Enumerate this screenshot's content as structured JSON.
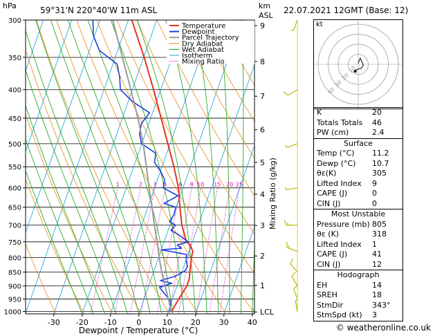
{
  "header": {
    "location": "59°31'N  220°40'W  11m  ASL",
    "datetime": "22.07.2021  12GMT  (Base: 12)"
  },
  "left_axis_label": "hPa",
  "right_axis_label_km": "km",
  "right_axis_label_asl": "ASL",
  "mixing_ratio_axis_label": "Mixing Ratio (g/kg)",
  "legend": [
    "Temperature",
    "Dewpoint",
    "Parcel Trajectory",
    "Dry Adiabat",
    "Wet Adiabat",
    "Isotherm",
    "Mixing Ratio"
  ],
  "colors": {
    "temperature": "#e8301c",
    "dewpoint": "#1a3fe0",
    "parcel": "#9a9a9a",
    "dry_adiabat": "#e88a10",
    "wet_adiabat": "#10a010",
    "isotherm": "#10a0d0",
    "mixing_ratio": "#d000b0"
  },
  "chart_data": {
    "type": "line",
    "title": "",
    "xlabel": "Dewpoint / Temperature (°C)",
    "ylabel": "hPa",
    "x_ticks": [
      -30,
      -20,
      -10,
      0,
      10,
      20,
      30,
      40
    ],
    "pressure_levels": [
      300,
      350,
      400,
      450,
      500,
      550,
      600,
      650,
      700,
      750,
      800,
      850,
      900,
      950,
      1000
    ],
    "km_ticks": [
      {
        "label": "9",
        "p": 307
      },
      {
        "label": "8",
        "p": 356
      },
      {
        "label": "7",
        "p": 411
      },
      {
        "label": "6",
        "p": 472
      },
      {
        "label": "5",
        "p": 540
      },
      {
        "label": "4",
        "p": 616
      },
      {
        "label": "3",
        "p": 701
      },
      {
        "label": "2",
        "p": 795
      },
      {
        "label": "1",
        "p": 898
      },
      {
        "label": "LCL",
        "p": 1002
      }
    ],
    "mixing_ratio_labels": [
      "1",
      "2",
      "3",
      "4",
      "6",
      "8",
      "10",
      "15",
      "20",
      "25"
    ],
    "mixing_ratio_values": [
      1,
      2,
      3,
      4,
      6,
      8,
      10,
      15,
      20,
      25
    ],
    "series": [
      {
        "name": "Temperature",
        "points": [
          [
            1003,
            11.2
          ],
          [
            950,
            12.2
          ],
          [
            900,
            13.5
          ],
          [
            870,
            13.4
          ],
          [
            850,
            12.8
          ],
          [
            800,
            11.6
          ],
          [
            780,
            11.3
          ],
          [
            760,
            9.6
          ],
          [
            750,
            7.9
          ],
          [
            700,
            4.2
          ],
          [
            650,
            1.3
          ],
          [
            600,
            -1.6
          ],
          [
            550,
            -5.8
          ],
          [
            500,
            -10.8
          ],
          [
            450,
            -16.3
          ],
          [
            400,
            -22.5
          ],
          [
            350,
            -29.8
          ],
          [
            300,
            -38.8
          ]
        ]
      },
      {
        "name": "Dewpoint",
        "points": [
          [
            1003,
            10.7
          ],
          [
            960,
            9.8
          ],
          [
            935,
            7.2
          ],
          [
            905,
            4.0
          ],
          [
            890,
            7.9
          ],
          [
            880,
            3.5
          ],
          [
            865,
            8.1
          ],
          [
            845,
            11.0
          ],
          [
            830,
            11.3
          ],
          [
            810,
            10.1
          ],
          [
            790,
            9.4
          ],
          [
            775,
            0.0
          ],
          [
            770,
            7.0
          ],
          [
            760,
            5.0
          ],
          [
            750,
            8.5
          ],
          [
            730,
            4.6
          ],
          [
            715,
            1.0
          ],
          [
            700,
            2.0
          ],
          [
            690,
            -0.6
          ],
          [
            670,
            0.2
          ],
          [
            650,
            -0.2
          ],
          [
            640,
            -4.8
          ],
          [
            620,
            -0.8
          ],
          [
            600,
            -7.0
          ],
          [
            580,
            -7.5
          ],
          [
            560,
            -10.0
          ],
          [
            540,
            -13.2
          ],
          [
            520,
            -13.9
          ],
          [
            500,
            -20.1
          ],
          [
            480,
            -22.0
          ],
          [
            460,
            -22.6
          ],
          [
            440,
            -21.1
          ],
          [
            420,
            -28.5
          ],
          [
            400,
            -34.2
          ],
          [
            380,
            -36.0
          ],
          [
            360,
            -38.5
          ],
          [
            340,
            -46.5
          ],
          [
            320,
            -50.4
          ],
          [
            300,
            -52.5
          ]
        ]
      },
      {
        "name": "Parcel Trajectory",
        "points": [
          [
            1003,
            11.2
          ],
          [
            950,
            8.6
          ],
          [
            900,
            5.8
          ],
          [
            850,
            2.9
          ],
          [
            800,
            0.2
          ],
          [
            750,
            -2.4
          ],
          [
            700,
            -5.5
          ],
          [
            650,
            -8.5
          ],
          [
            600,
            -12.0
          ],
          [
            550,
            -15.5
          ],
          [
            500,
            -19.5
          ],
          [
            450,
            -24.5
          ],
          [
            400,
            -30.5
          ],
          [
            350,
            -37.5
          ],
          [
            300,
            -45.5
          ]
        ]
      }
    ]
  },
  "hodograph": {
    "label": "kt",
    "ring_labels": [
      "10",
      "20",
      "30",
      "40"
    ],
    "path_kt": [
      [
        0,
        1
      ],
      [
        1,
        4
      ],
      [
        2,
        6
      ],
      [
        4,
        2
      ],
      [
        5,
        -1
      ],
      [
        3,
        -4
      ],
      [
        -1,
        -5
      ],
      [
        -3,
        -7
      ]
    ]
  },
  "indices": {
    "top": [
      {
        "label": "K",
        "value": "20"
      },
      {
        "label": "Totals Totals",
        "value": "46"
      },
      {
        "label": "PW (cm)",
        "value": "2.4"
      }
    ],
    "surface": {
      "title": "Surface",
      "rows": [
        {
          "label": "Temp (°C)",
          "value": "11.2"
        },
        {
          "label": "Dewp (°C)",
          "value": "10.7"
        },
        {
          "label": "θε(K)",
          "value": "305"
        },
        {
          "label": "Lifted Index",
          "value": "9"
        },
        {
          "label": "CAPE (J)",
          "value": "0"
        },
        {
          "label": "CIN (J)",
          "value": "0"
        }
      ]
    },
    "most_unstable": {
      "title": "Most Unstable",
      "rows": [
        {
          "label": "Pressure (mb)",
          "value": "805"
        },
        {
          "label": "θε (K)",
          "value": "318"
        },
        {
          "label": "Lifted Index",
          "value": "1"
        },
        {
          "label": "CAPE (J)",
          "value": "41"
        },
        {
          "label": "CIN (J)",
          "value": "12"
        }
      ]
    },
    "hodograph": {
      "title": "Hodograph",
      "rows": [
        {
          "label": "EH",
          "value": "14"
        },
        {
          "label": "SREH",
          "value": "18"
        },
        {
          "label": "StmDir",
          "value": "343°"
        },
        {
          "label": "StmSpd (kt)",
          "value": "3"
        }
      ]
    }
  },
  "wind_barbs": [
    {
      "p": 300,
      "dir": 200,
      "spd": 5
    },
    {
      "p": 400,
      "dir": 240,
      "spd": 10
    },
    {
      "p": 500,
      "dir": 250,
      "spd": 5
    },
    {
      "p": 600,
      "dir": 260,
      "spd": 5
    },
    {
      "p": 700,
      "dir": 270,
      "spd": 15
    },
    {
      "p": 780,
      "dir": 290,
      "spd": 15
    },
    {
      "p": 850,
      "dir": 320,
      "spd": 10
    },
    {
      "p": 900,
      "dir": 330,
      "spd": 10
    },
    {
      "p": 950,
      "dir": 340,
      "spd": 10
    },
    {
      "p": 1000,
      "dir": 350,
      "spd": 5
    }
  ],
  "footer": "© weatheronline.co.uk"
}
